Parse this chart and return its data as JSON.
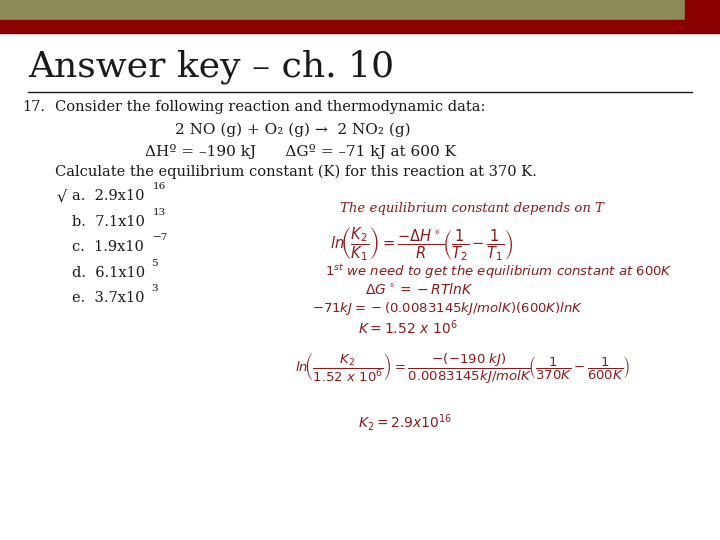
{
  "title": "Answer key – ch. 10",
  "bg_color": "#ffffff",
  "header_bar1_color": "#8b8b5a",
  "header_bar2_color": "#8b0000",
  "title_font_size": 26,
  "body_font_size": 10.5,
  "text_color": "#1a1a1a",
  "italic_color": "#8b1a1a",
  "question_number": "17.",
  "line1": "Consider the following reaction and thermodynamic data:",
  "reaction": "2 NO (g) + O₂ (g) →  2 NO₂ (g)",
  "thermo": "ΔHº = –190 kJ      ΔGº = –71 kJ at 600 K",
  "question_text": "Calculate the equilibrium constant (K) for this reaction at 370 K.",
  "answer_a": "a.  2.9x10",
  "answer_a_exp": "16",
  "answer_b": "b.  7.1x10",
  "answer_b_exp": "13",
  "answer_c": "c.  1.9x10",
  "answer_c_exp": "−7",
  "answer_d": "d.  6.1x10",
  "answer_d_exp": "5",
  "answer_e": "e.  3.7x10",
  "answer_e_exp": "3",
  "checkmark": "√"
}
